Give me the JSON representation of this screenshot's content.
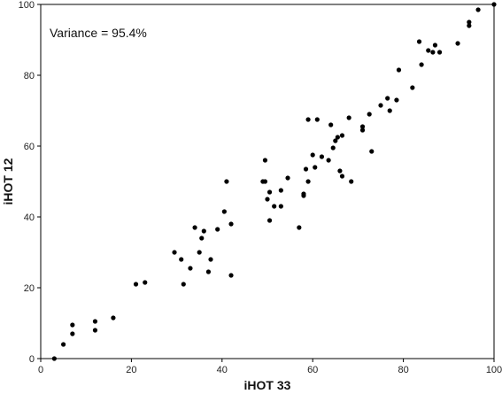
{
  "chart_data": {
    "type": "scatter",
    "title": "",
    "xlabel": "iHOT 33",
    "ylabel": "iHOT 12",
    "xlim": [
      0,
      100
    ],
    "ylim": [
      0,
      100
    ],
    "xticks": [
      0,
      20,
      40,
      60,
      80,
      100
    ],
    "yticks": [
      0,
      20,
      40,
      60,
      80,
      100
    ],
    "grid": false,
    "legend": "none",
    "annotation": "Variance = 95.4%",
    "point_color": "#000000",
    "series": [
      {
        "points": [
          [
            3,
            0
          ],
          [
            5,
            4
          ],
          [
            7,
            7
          ],
          [
            7,
            9.5
          ],
          [
            12,
            8
          ],
          [
            12,
            10.5
          ],
          [
            16,
            11.5
          ],
          [
            21,
            21
          ],
          [
            23,
            21.5
          ],
          [
            29.5,
            30
          ],
          [
            31,
            28
          ],
          [
            31.5,
            21
          ],
          [
            33,
            25.5
          ],
          [
            34,
            37
          ],
          [
            35,
            30
          ],
          [
            35.5,
            34
          ],
          [
            36,
            36
          ],
          [
            37,
            24.5
          ],
          [
            37.5,
            28
          ],
          [
            39,
            36.5
          ],
          [
            40.5,
            41.5
          ],
          [
            41,
            50
          ],
          [
            42,
            38
          ],
          [
            42,
            23.5
          ],
          [
            49,
            50
          ],
          [
            49.5,
            50
          ],
          [
            49.5,
            56
          ],
          [
            50,
            45
          ],
          [
            50.5,
            47
          ],
          [
            50.5,
            39
          ],
          [
            51.5,
            43
          ],
          [
            53,
            43
          ],
          [
            53,
            47.5
          ],
          [
            54.5,
            51
          ],
          [
            57,
            37
          ],
          [
            58,
            46
          ],
          [
            58,
            46.5
          ],
          [
            58.5,
            53.5
          ],
          [
            59,
            50
          ],
          [
            59,
            67.5
          ],
          [
            60,
            57.5
          ],
          [
            60.5,
            54
          ],
          [
            61,
            67.5
          ],
          [
            62,
            57
          ],
          [
            63.5,
            56
          ],
          [
            64,
            66
          ],
          [
            64.5,
            59.5
          ],
          [
            65,
            61.5
          ],
          [
            65.5,
            62.5
          ],
          [
            66,
            53
          ],
          [
            66.5,
            51.5
          ],
          [
            66.5,
            63
          ],
          [
            68,
            68
          ],
          [
            68.5,
            50
          ],
          [
            71,
            64.5
          ],
          [
            71,
            65.5
          ],
          [
            72.5,
            69
          ],
          [
            73,
            58.5
          ],
          [
            75,
            71.5
          ],
          [
            76.5,
            73.5
          ],
          [
            77,
            70
          ],
          [
            78.5,
            73
          ],
          [
            79,
            81.5
          ],
          [
            82,
            76.5
          ],
          [
            83.5,
            89.5
          ],
          [
            84,
            83
          ],
          [
            85.5,
            87
          ],
          [
            86.5,
            86.5
          ],
          [
            87,
            88.5
          ],
          [
            88,
            86.5
          ],
          [
            92,
            89
          ],
          [
            94.5,
            94
          ],
          [
            94.5,
            95
          ],
          [
            96.5,
            98.5
          ],
          [
            100,
            100
          ]
        ]
      }
    ]
  }
}
